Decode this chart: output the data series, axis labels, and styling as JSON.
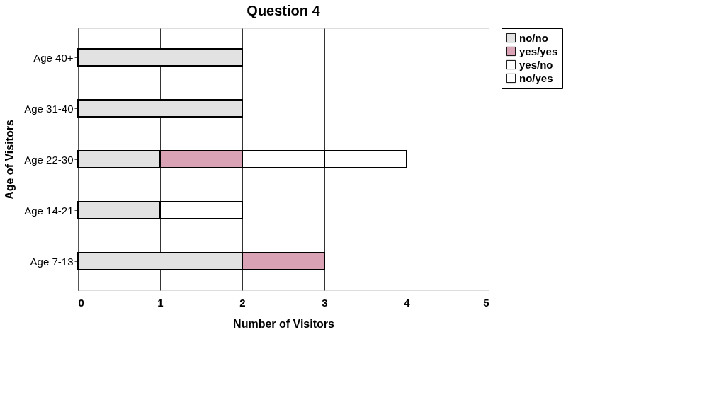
{
  "chart_data": {
    "type": "bar",
    "orientation": "horizontal",
    "stacked": true,
    "title": "Question 4",
    "xlabel": "Number of Visitors",
    "ylabel": "Age of Visitors",
    "categories": [
      "Age 40+",
      "Age 31-40",
      "Age 22-30",
      "Age 14-21",
      "Age 7-13"
    ],
    "series": [
      {
        "name": "no/no",
        "color": "#e2e2e2",
        "values": [
          2,
          2,
          1,
          1,
          2
        ]
      },
      {
        "name": "yes/yes",
        "color": "#d9a3b5",
        "values": [
          null,
          null,
          1,
          null,
          1
        ]
      },
      {
        "name": "yes/no",
        "color": "#ffffff",
        "values": [
          null,
          null,
          1,
          1,
          null
        ]
      },
      {
        "name": "no/yes",
        "color": "#ffffff",
        "values": [
          null,
          null,
          1,
          null,
          null
        ]
      }
    ],
    "xlim": [
      0,
      5
    ],
    "xticks": [
      0,
      1,
      2,
      3,
      4,
      5
    ],
    "grid": "x",
    "legend": "right"
  }
}
